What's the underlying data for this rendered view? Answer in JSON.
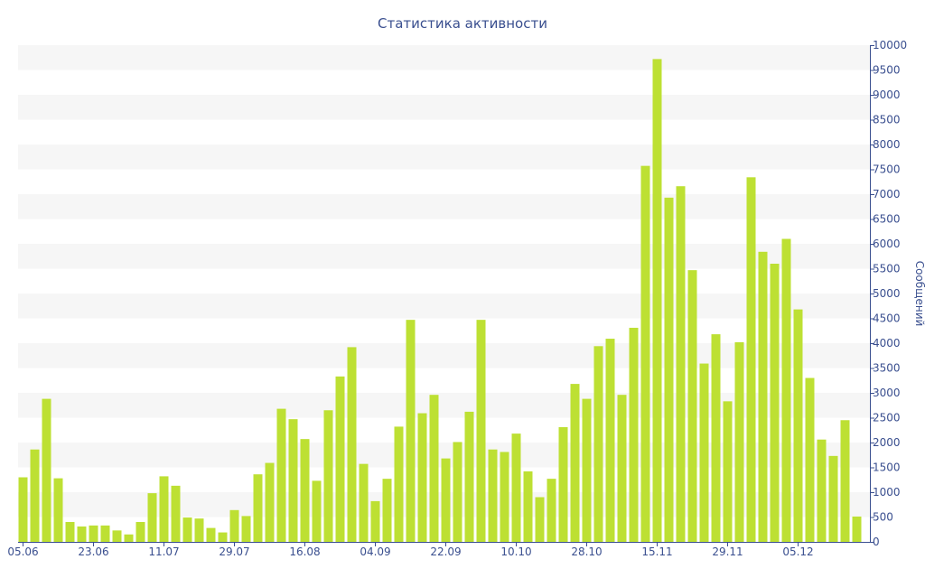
{
  "chart_data": {
    "type": "bar",
    "title": "Статистика активности",
    "xlabel": "",
    "ylabel": "Сообщений",
    "y_axis_side": "right",
    "ylim": [
      0,
      10000
    ],
    "y_ticks": [
      0,
      500,
      1000,
      1500,
      2000,
      2500,
      3000,
      3500,
      4000,
      4500,
      5000,
      5500,
      6000,
      6500,
      7000,
      7500,
      8000,
      8500,
      9000,
      9500,
      10000
    ],
    "x_tick_labels": [
      {
        "label": "05.06",
        "index": 0
      },
      {
        "label": "23.06",
        "index": 6
      },
      {
        "label": "11.07",
        "index": 12
      },
      {
        "label": "29.07",
        "index": 18
      },
      {
        "label": "16.08",
        "index": 24
      },
      {
        "label": "04.09",
        "index": 30
      },
      {
        "label": "22.09",
        "index": 36
      },
      {
        "label": "10.10",
        "index": 42
      },
      {
        "label": "28.10",
        "index": 48
      },
      {
        "label": "15.11",
        "index": 54
      },
      {
        "label": "29.11",
        "index": 60
      },
      {
        "label": "05.12",
        "index": 66
      }
    ],
    "values": [
      1300,
      1860,
      2880,
      1280,
      400,
      310,
      330,
      330,
      230,
      150,
      400,
      980,
      1320,
      1130,
      490,
      470,
      280,
      190,
      640,
      520,
      1360,
      1590,
      2680,
      2470,
      2070,
      1230,
      2650,
      3330,
      3920,
      1570,
      820,
      1270,
      2320,
      4470,
      2590,
      2960,
      1680,
      2010,
      2620,
      4470,
      1860,
      1810,
      2180,
      1420,
      900,
      1270,
      2310,
      3180,
      2880,
      3940,
      4090,
      2960,
      4310,
      7570,
      9720,
      6930,
      7160,
      5470,
      3590,
      4180,
      2830,
      4020,
      7340,
      5840,
      5600,
      6100,
      4680,
      3300,
      2060,
      1730,
      2450,
      510
    ],
    "colors": {
      "bar": "#bde033",
      "text": "#3a4f8f",
      "grid_band": "#f6f6f6",
      "axis": "#3a4f8f"
    },
    "grid": true
  }
}
